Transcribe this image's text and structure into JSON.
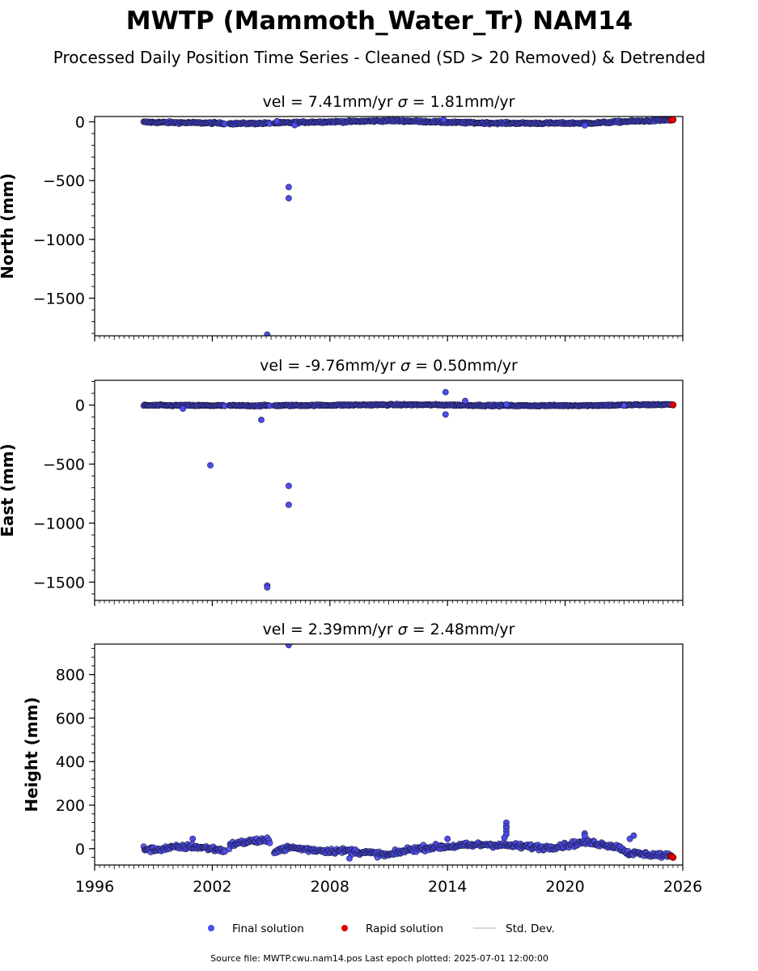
{
  "title": "MWTP (Mammoth_Water_Tr) NAM14",
  "subtitle": "Processed Daily Position Time Series - Cleaned (SD > 20 Removed) & Detrended",
  "colors": {
    "final": "#4c4cf0",
    "final_edge": "#1a1a40",
    "rapid": "#e00000",
    "stddev": "#cccccc",
    "axes": "#000000"
  },
  "legend": {
    "placement": "bottom-center",
    "items": [
      {
        "label": "Final solution",
        "kind": "final"
      },
      {
        "label": "Rapid solution",
        "kind": "rapid"
      },
      {
        "label": "Std. Dev.",
        "kind": "stddev"
      }
    ]
  },
  "footer": "Source file: MWTP.cwu.nam14.pos  Last epoch plotted: 2025-07-01 12:00:00",
  "chart_data": [
    {
      "type": "scatter",
      "title_vel": "vel = 7.41mm/yr",
      "title_sigma": " = 1.81mm/yr",
      "ylabel": "North (mm)",
      "xlim": [
        1996,
        2026
      ],
      "ylim": [
        -1820,
        45
      ],
      "yticks": [
        0,
        -500,
        -1000,
        -1500
      ],
      "grid": false,
      "baseline": [
        [
          1998.5,
          -3
        ],
        [
          2000,
          -6
        ],
        [
          2002,
          -10
        ],
        [
          2003,
          -15
        ],
        [
          2005,
          -12
        ],
        [
          2007,
          -2
        ],
        [
          2009,
          2
        ],
        [
          2011,
          10
        ],
        [
          2012.5,
          5
        ],
        [
          2014,
          -5
        ],
        [
          2016,
          -10
        ],
        [
          2018,
          -12
        ],
        [
          2020,
          -12
        ],
        [
          2021.5,
          -10
        ],
        [
          2023,
          2
        ],
        [
          2024.5,
          10
        ],
        [
          2025.5,
          18
        ]
      ],
      "scatter_band": 8,
      "outliers": [
        [
          2005.9,
          -555
        ],
        [
          2005.9,
          -650
        ],
        [
          2004.8,
          -1810
        ],
        [
          2006.2,
          -28
        ],
        [
          2021,
          -30
        ],
        [
          2013.8,
          18
        ],
        [
          2005.3,
          5
        ]
      ],
      "rapid": [
        [
          2025.4,
          14
        ],
        [
          2025.5,
          18
        ]
      ]
    },
    {
      "type": "scatter",
      "title_vel": "vel = -9.76mm/yr",
      "title_sigma": " = 0.50mm/yr",
      "ylabel": "East (mm)",
      "xlim": [
        1996,
        2026
      ],
      "ylim": [
        -1655,
        210
      ],
      "yticks": [
        0,
        -500,
        -1000,
        -1500
      ],
      "grid": false,
      "baseline": [
        [
          1998.5,
          -2
        ],
        [
          2000,
          -3
        ],
        [
          2002,
          -4
        ],
        [
          2004,
          -5
        ],
        [
          2006,
          -3
        ],
        [
          2008,
          -1
        ],
        [
          2010,
          2
        ],
        [
          2012,
          3
        ],
        [
          2014,
          1
        ],
        [
          2016,
          -3
        ],
        [
          2018,
          -5
        ],
        [
          2020,
          -4
        ],
        [
          2022,
          -2
        ],
        [
          2024,
          3
        ],
        [
          2025.5,
          5
        ]
      ],
      "scatter_band": 6,
      "outliers": [
        [
          2001.9,
          -510
        ],
        [
          2005.9,
          -685
        ],
        [
          2005.9,
          -845
        ],
        [
          2004.8,
          -1530
        ],
        [
          2004.8,
          -1545
        ],
        [
          2004.5,
          -125
        ],
        [
          2013.9,
          110
        ],
        [
          2013.9,
          -80
        ],
        [
          2014.9,
          35
        ],
        [
          2000.5,
          -30
        ],
        [
          2017,
          5
        ],
        [
          2023,
          -5
        ]
      ],
      "rapid": [
        [
          2025.5,
          2
        ]
      ]
    },
    {
      "type": "scatter",
      "title_vel": "vel = 2.39mm/yr",
      "title_sigma": " = 2.48mm/yr",
      "ylabel": "Height (mm)",
      "xlabel": "",
      "xlim": [
        1996,
        2026
      ],
      "ylim": [
        -75,
        940
      ],
      "yticks": [
        0,
        200,
        400,
        600,
        800
      ],
      "xticks": [
        1996,
        2002,
        2008,
        2014,
        2020,
        2026
      ],
      "grid": false,
      "baseline": [
        [
          1998.5,
          0
        ],
        [
          1999,
          -5
        ],
        [
          2000,
          5
        ],
        [
          2001,
          10
        ],
        [
          2002,
          0
        ],
        [
          2002.7,
          -10
        ],
        [
          2003,
          20
        ],
        [
          2004,
          35
        ],
        [
          2004.9,
          35
        ],
        [
          2005.1,
          -10
        ],
        [
          2006,
          5
        ],
        [
          2007,
          -5
        ],
        [
          2008,
          -10
        ],
        [
          2009,
          -10
        ],
        [
          2010,
          -20
        ],
        [
          2011,
          -30
        ],
        [
          2012,
          -5
        ],
        [
          2013,
          5
        ],
        [
          2014,
          10
        ],
        [
          2015,
          15
        ],
        [
          2016,
          20
        ],
        [
          2017,
          15
        ],
        [
          2018,
          10
        ],
        [
          2019,
          5
        ],
        [
          2020,
          15
        ],
        [
          2021,
          30
        ],
        [
          2022,
          20
        ],
        [
          2022.8,
          5
        ],
        [
          2023.2,
          -20
        ],
        [
          2024,
          -25
        ],
        [
          2025,
          -30
        ],
        [
          2025.5,
          -38
        ]
      ],
      "scatter_band": 12,
      "outliers": [
        [
          2005.9,
          935
        ],
        [
          2017,
          120
        ],
        [
          2017,
          105
        ],
        [
          2017,
          95
        ],
        [
          2017,
          80
        ],
        [
          2017,
          65
        ],
        [
          2016.9,
          50
        ],
        [
          2021,
          70
        ],
        [
          2021,
          58
        ],
        [
          2023.5,
          60
        ],
        [
          2023.3,
          45
        ],
        [
          2014,
          45
        ],
        [
          2001,
          45
        ],
        [
          2009,
          -45
        ]
      ],
      "rapid": [
        [
          2025.4,
          -35
        ],
        [
          2025.5,
          -40
        ]
      ]
    }
  ]
}
